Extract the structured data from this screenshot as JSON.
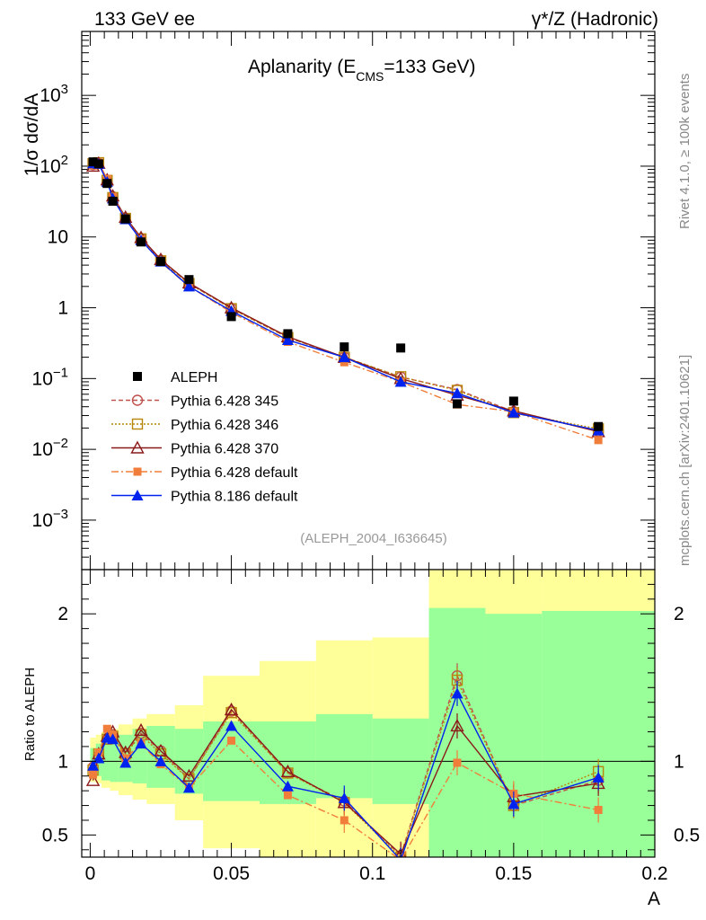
{
  "header": {
    "left": "133 GeV ee",
    "right": "γ*/Z (Hadronic)"
  },
  "side_text": {
    "rivet": "Rivet 4.1.0, ≥ 100k events",
    "mcplots": "mcplots.cern.ch [arXiv:2401.10621]"
  },
  "chart_data": [
    {
      "type": "line",
      "title_main": "Aplanarity (E",
      "title_sub": "CMS",
      "title_tail": "=133 GeV)",
      "ylabel": "1/σ  dσ/dA",
      "yscale": "log",
      "ylim": [
        0.0002,
        8000
      ],
      "xlim": [
        -0.003,
        0.2
      ],
      "watermark": "(ALEPH_2004_I636645)",
      "y_tick_labels": [
        {
          "value": 0.001,
          "base": "10",
          "exp": "−3"
        },
        {
          "value": 0.01,
          "base": "10",
          "exp": "−2"
        },
        {
          "value": 0.1,
          "base": "10",
          "exp": "−1"
        },
        {
          "value": 1,
          "base": "1",
          "exp": ""
        },
        {
          "value": 10,
          "base": "10",
          "exp": ""
        },
        {
          "value": 100,
          "base": "10",
          "exp": "2"
        },
        {
          "value": 1000,
          "base": "10",
          "exp": "3"
        }
      ],
      "x": [
        0.001,
        0.003,
        0.006,
        0.008,
        0.0125,
        0.018,
        0.025,
        0.035,
        0.05,
        0.07,
        0.09,
        0.11,
        0.13,
        0.15,
        0.18
      ],
      "data": {
        "name": "ALEPH",
        "values": [
          115,
          108,
          57,
          32,
          18,
          8.5,
          4.5,
          2.5,
          0.75,
          0.43,
          0.28,
          0.27,
          0.044,
          0.048,
          0.021
        ]
      },
      "series": [
        {
          "name": "Pythia 6.428 345",
          "color": "#c0504d",
          "dash": "5,3",
          "marker": "circle-open",
          "values": [
            105,
            110,
            62,
            37,
            18.5,
            9.5,
            4.7,
            2.2,
            0.98,
            0.38,
            0.2,
            0.105,
            0.07,
            0.034,
            0.018
          ]
        },
        {
          "name": "Pythia 6.428 346",
          "color": "#b8860b",
          "dash": "2,2",
          "marker": "square-open",
          "values": [
            108,
            112,
            63,
            36,
            18.3,
            9.4,
            4.6,
            2.2,
            0.97,
            0.38,
            0.2,
            0.106,
            0.068,
            0.033,
            0.0195
          ]
        },
        {
          "name": "Pythia 6.428 370",
          "color": "#8b1a1a",
          "dash": "",
          "marker": "triangle-open",
          "values": [
            100,
            110,
            64,
            38,
            19,
            9.8,
            4.8,
            2.25,
            1.0,
            0.39,
            0.2,
            0.1,
            0.058,
            0.035,
            0.0178
          ]
        },
        {
          "name": "Pythia 6.428 default",
          "color": "#f07e3a",
          "dash": "8,3,2,3",
          "marker": "square-filled",
          "values": [
            102,
            112,
            66,
            37,
            18.2,
            9.2,
            4.4,
            2.0,
            0.86,
            0.33,
            0.17,
            0.09,
            0.043,
            0.034,
            0.0135
          ]
        },
        {
          "name": "Pythia 8.186 default",
          "color": "#0022ee",
          "dash": "",
          "marker": "triangle-filled",
          "values": [
            110,
            108,
            60,
            35,
            17.8,
            9.0,
            4.5,
            2.0,
            0.9,
            0.35,
            0.2,
            0.09,
            0.062,
            0.033,
            0.0185
          ]
        }
      ]
    },
    {
      "type": "line",
      "ylabel": "Ratio to ALEPH",
      "xlabel": "A",
      "ylim": [
        0.35,
        2.3
      ],
      "xlim": [
        -0.003,
        0.2
      ],
      "y_ticks": [
        0.5,
        1,
        2
      ],
      "y_tick_labels": [
        "0.5",
        "1",
        "2"
      ],
      "x_ticks": [
        0,
        0.05,
        0.1,
        0.15,
        0.2
      ],
      "x_tick_labels": [
        "0",
        "0.05",
        "0.1",
        "0.15",
        "0.2"
      ],
      "bins": [
        {
          "lo": 0.0,
          "hi": 0.002,
          "stat": [
            0.92,
            1.09
          ],
          "tot": [
            0.86,
            1.16
          ]
        },
        {
          "lo": 0.002,
          "hi": 0.004,
          "stat": [
            0.9,
            1.12
          ],
          "tot": [
            0.85,
            1.18
          ]
        },
        {
          "lo": 0.004,
          "hi": 0.007,
          "stat": [
            0.87,
            1.16
          ],
          "tot": [
            0.82,
            1.2
          ]
        },
        {
          "lo": 0.007,
          "hi": 0.01,
          "stat": [
            0.86,
            1.16
          ],
          "tot": [
            0.8,
            1.22
          ]
        },
        {
          "lo": 0.01,
          "hi": 0.015,
          "stat": [
            0.86,
            1.18
          ],
          "tot": [
            0.77,
            1.25
          ]
        },
        {
          "lo": 0.015,
          "hi": 0.02,
          "stat": [
            0.85,
            1.22
          ],
          "tot": [
            0.74,
            1.29
          ]
        },
        {
          "lo": 0.02,
          "hi": 0.03,
          "stat": [
            0.82,
            1.24
          ],
          "tot": [
            0.71,
            1.32
          ]
        },
        {
          "lo": 0.03,
          "hi": 0.04,
          "stat": [
            0.78,
            1.22
          ],
          "tot": [
            0.6,
            1.38
          ]
        },
        {
          "lo": 0.04,
          "hi": 0.06,
          "stat": [
            0.73,
            1.27
          ],
          "tot": [
            0.41,
            1.58
          ]
        },
        {
          "lo": 0.06,
          "hi": 0.08,
          "stat": [
            0.71,
            1.27
          ],
          "tot": [
            0.35,
            1.68
          ]
        },
        {
          "lo": 0.08,
          "hi": 0.1,
          "stat": [
            0.75,
            1.32
          ],
          "tot": [
            0.35,
            1.82
          ]
        },
        {
          "lo": 0.1,
          "hi": 0.12,
          "stat": [
            0.71,
            1.29
          ],
          "tot": [
            0.35,
            1.84
          ]
        },
        {
          "lo": 0.12,
          "hi": 0.14,
          "stat": [
            0.35,
            2.04
          ],
          "tot": [
            0.35,
            2.4
          ]
        },
        {
          "lo": 0.14,
          "hi": 0.16,
          "stat": [
            0.35,
            2.0
          ],
          "tot": [
            0.35,
            2.4
          ]
        },
        {
          "lo": 0.16,
          "hi": 0.2,
          "stat": [
            0.35,
            2.02
          ],
          "tot": [
            0.35,
            2.4
          ]
        }
      ],
      "x": [
        0.001,
        0.003,
        0.006,
        0.008,
        0.0125,
        0.018,
        0.025,
        0.035,
        0.05,
        0.07,
        0.09,
        0.11,
        0.13,
        0.15,
        0.18
      ],
      "series": [
        {
          "name": "Pythia 6.428 345",
          "values": [
            0.96,
            1.04,
            1.15,
            1.18,
            1.05,
            1.19,
            1.07,
            0.88,
            1.34,
            0.92,
            0.73,
            0.36,
            1.58,
            0.7,
            0.87
          ]
        },
        {
          "name": "Pythia 6.428 346",
          "values": [
            0.94,
            1.05,
            1.15,
            1.17,
            1.05,
            1.18,
            1.05,
            0.88,
            1.33,
            0.92,
            0.72,
            0.35,
            1.55,
            0.7,
            0.93
          ]
        },
        {
          "name": "Pythia 6.428 370",
          "values": [
            0.87,
            1.05,
            1.17,
            1.2,
            1.06,
            1.21,
            1.07,
            0.9,
            1.35,
            0.93,
            0.72,
            0.37,
            1.24,
            0.76,
            0.85
          ]
        },
        {
          "name": "Pythia 6.428 default",
          "values": [
            0.91,
            1.06,
            1.22,
            1.18,
            1.02,
            1.12,
            0.98,
            0.82,
            1.14,
            0.77,
            0.6,
            0.33,
            0.99,
            0.78,
            0.67
          ]
        },
        {
          "name": "Pythia 8.186 default",
          "values": [
            0.97,
            1.02,
            1.16,
            1.15,
            0.99,
            1.12,
            1.0,
            0.82,
            1.24,
            0.83,
            0.75,
            0.33,
            1.46,
            0.71,
            0.89
          ]
        }
      ]
    }
  ]
}
